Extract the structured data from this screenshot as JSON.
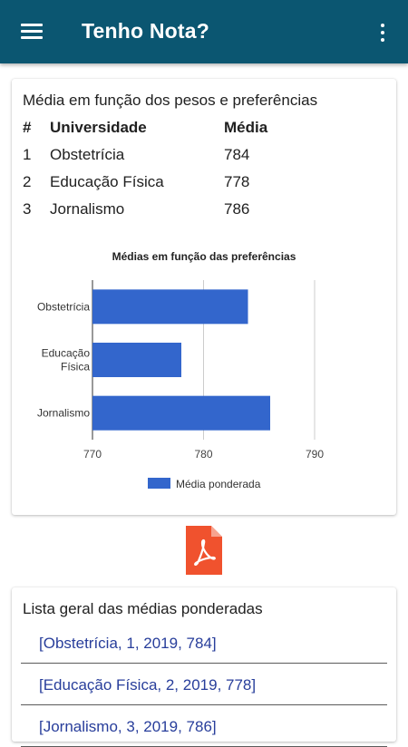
{
  "app": {
    "title": "Tenho Nota?",
    "menu_icon": "hamburger-menu-icon",
    "overflow_icon": "more-vert-icon"
  },
  "card1": {
    "title": "Média em função dos pesos e preferências",
    "table": {
      "headers": [
        "#",
        "Universidade",
        "Média"
      ],
      "rows": [
        {
          "rank": "1",
          "name": "Obstetrícia",
          "media": "784"
        },
        {
          "rank": "2",
          "name": "Educação Física",
          "media": "778"
        },
        {
          "rank": "3",
          "name": "Jornalismo",
          "media": "786"
        }
      ]
    }
  },
  "chart_data": {
    "type": "bar",
    "orientation": "horizontal",
    "title": "Médias em função das preferências",
    "categories": [
      "Obstetrícia",
      "Educação Física",
      "Jornalismo"
    ],
    "category_lines": [
      [
        "Obstetrícia"
      ],
      [
        "Educação",
        "Física"
      ],
      [
        "Jornalismo"
      ]
    ],
    "series": [
      {
        "name": "Média ponderada",
        "values": [
          784,
          778,
          786
        ],
        "color": "#3366cc"
      }
    ],
    "xlim": [
      770,
      790
    ],
    "xticks": [
      "770",
      "780",
      "790"
    ],
    "grid": true,
    "legend": "bottom"
  },
  "pdf": {
    "icon": "pdf-file-icon",
    "color": "#f0522e"
  },
  "card2": {
    "title": "Lista geral das médias ponderadas",
    "items": [
      "[Obstetrícia, 1, 2019, 784]",
      "[Educação Física, 2, 2019, 778]",
      "[Jornalismo, 3, 2019, 786]"
    ]
  }
}
